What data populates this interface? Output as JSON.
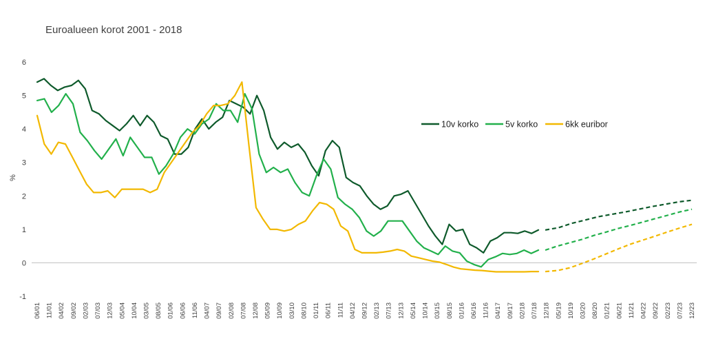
{
  "chart_data": {
    "type": "line",
    "title": "Euroalueen korot 2001 - 2018",
    "ylabel": "%",
    "xlabel": "",
    "ylim": [
      -1,
      6
    ],
    "yticks": [
      "-1",
      "0",
      "1",
      "2",
      "3",
      "4",
      "5",
      "6"
    ],
    "grid": false,
    "legend_position": "center-right",
    "x_tick_labels": [
      "06/01",
      "11/01",
      "04/02",
      "09/02",
      "02/03",
      "07/03",
      "12/03",
      "05/04",
      "10/04",
      "03/05",
      "08/05",
      "01/06",
      "06/06",
      "11/06",
      "04/07",
      "09/07",
      "02/08",
      "07/08",
      "12/08",
      "05/09",
      "10/09",
      "03/10",
      "08/10",
      "01/11",
      "06/11",
      "11/11",
      "04/12",
      "09/12",
      "02/13",
      "07/13",
      "12/13",
      "05/14",
      "10/14",
      "03/15",
      "08/15",
      "01/16",
      "06/16",
      "11/16",
      "04/17",
      "09/17",
      "02/18",
      "07/18",
      "12/18",
      "05/19",
      "10/19",
      "03/20",
      "08/20",
      "01/21",
      "06/21",
      "11/21",
      "04/22",
      "09/22",
      "02/23",
      "07/23",
      "12/23"
    ],
    "series": [
      {
        "name": "10v korko",
        "color": "#0e5a2b",
        "style": "solid",
        "values": [
          5.4,
          5.5,
          5.3,
          5.15,
          5.25,
          5.3,
          5.45,
          5.2,
          4.55,
          4.45,
          4.25,
          4.1,
          3.95,
          4.15,
          4.4,
          4.1,
          4.4,
          4.2,
          3.8,
          3.7,
          3.25,
          3.25,
          3.45,
          4.0,
          4.3,
          4.0,
          4.2,
          4.35,
          4.85,
          4.75,
          4.65,
          4.45,
          5.0,
          4.55,
          3.75,
          3.4,
          3.6,
          3.45,
          3.55,
          3.3,
          2.9,
          2.6,
          3.35,
          3.65,
          3.45,
          2.55,
          2.4,
          2.3,
          2.0,
          1.75,
          1.6,
          1.7,
          2.0,
          2.05,
          2.15,
          1.8,
          1.45,
          1.1,
          0.8,
          0.55,
          1.15,
          0.95,
          1.0,
          0.55,
          0.45,
          0.3,
          0.65,
          0.75,
          0.9,
          0.9,
          0.88,
          0.95,
          0.88,
          0.98
        ]
      },
      {
        "name": "10v korko",
        "color": "#0e5a2b",
        "style": "dashed",
        "values": [
          0.98,
          1.05,
          1.18,
          1.28,
          1.38,
          1.45,
          1.52,
          1.6,
          1.68,
          1.75,
          1.82,
          1.87
        ]
      },
      {
        "name": "5v korko",
        "color": "#22b04b",
        "style": "solid",
        "values": [
          4.85,
          4.9,
          4.5,
          4.7,
          5.05,
          4.75,
          3.9,
          3.65,
          3.35,
          3.1,
          3.4,
          3.7,
          3.2,
          3.75,
          3.45,
          3.15,
          3.15,
          2.65,
          2.9,
          3.25,
          3.75,
          4.0,
          3.85,
          4.15,
          4.3,
          4.75,
          4.55,
          4.55,
          4.2,
          5.05,
          4.6,
          3.25,
          2.7,
          2.85,
          2.7,
          2.8,
          2.4,
          2.1,
          2.0,
          2.6,
          3.1,
          2.8,
          1.95,
          1.75,
          1.6,
          1.35,
          0.95,
          0.8,
          0.95,
          1.25,
          1.25,
          1.25,
          0.95,
          0.65,
          0.45,
          0.35,
          0.25,
          0.5,
          0.35,
          0.3,
          0.05,
          -0.05,
          -0.12,
          0.1,
          0.18,
          0.28,
          0.25,
          0.28,
          0.38,
          0.28,
          0.38
        ]
      },
      {
        "name": "5v korko",
        "color": "#22b04b",
        "style": "dashed",
        "values": [
          0.38,
          0.5,
          0.6,
          0.7,
          0.82,
          0.92,
          1.03,
          1.12,
          1.22,
          1.32,
          1.42,
          1.52,
          1.6
        ]
      },
      {
        "name": "6kk euribor",
        "color": "#f2b800",
        "style": "solid",
        "values": [
          4.4,
          3.55,
          3.25,
          3.6,
          3.55,
          3.15,
          2.75,
          2.35,
          2.1,
          2.1,
          2.15,
          1.95,
          2.2,
          2.2,
          2.2,
          2.2,
          2.1,
          2.2,
          2.7,
          3.0,
          3.3,
          3.6,
          3.9,
          4.1,
          4.45,
          4.7,
          4.7,
          4.75,
          5.0,
          5.4,
          3.5,
          1.65,
          1.3,
          1.0,
          1.0,
          0.95,
          1.0,
          1.15,
          1.25,
          1.55,
          1.8,
          1.75,
          1.6,
          1.1,
          0.95,
          0.4,
          0.3,
          0.3,
          0.3,
          0.32,
          0.35,
          0.4,
          0.35,
          0.2,
          0.15,
          0.1,
          0.05,
          0.02,
          -0.05,
          -0.13,
          -0.18,
          -0.2,
          -0.22,
          -0.23,
          -0.25,
          -0.27,
          -0.27,
          -0.27,
          -0.27,
          -0.27,
          -0.26,
          -0.26
        ]
      },
      {
        "name": "6kk euribor",
        "color": "#f2b800",
        "style": "dashed",
        "values": [
          -0.26,
          -0.23,
          -0.15,
          -0.02,
          0.12,
          0.27,
          0.42,
          0.56,
          0.68,
          0.8,
          0.92,
          1.04,
          1.15
        ]
      }
    ],
    "legend": [
      {
        "label": "10v korko",
        "color": "#0e5a2b"
      },
      {
        "label": "5v korko",
        "color": "#22b04b"
      },
      {
        "label": "6kk euribor",
        "color": "#f2b800"
      }
    ]
  }
}
